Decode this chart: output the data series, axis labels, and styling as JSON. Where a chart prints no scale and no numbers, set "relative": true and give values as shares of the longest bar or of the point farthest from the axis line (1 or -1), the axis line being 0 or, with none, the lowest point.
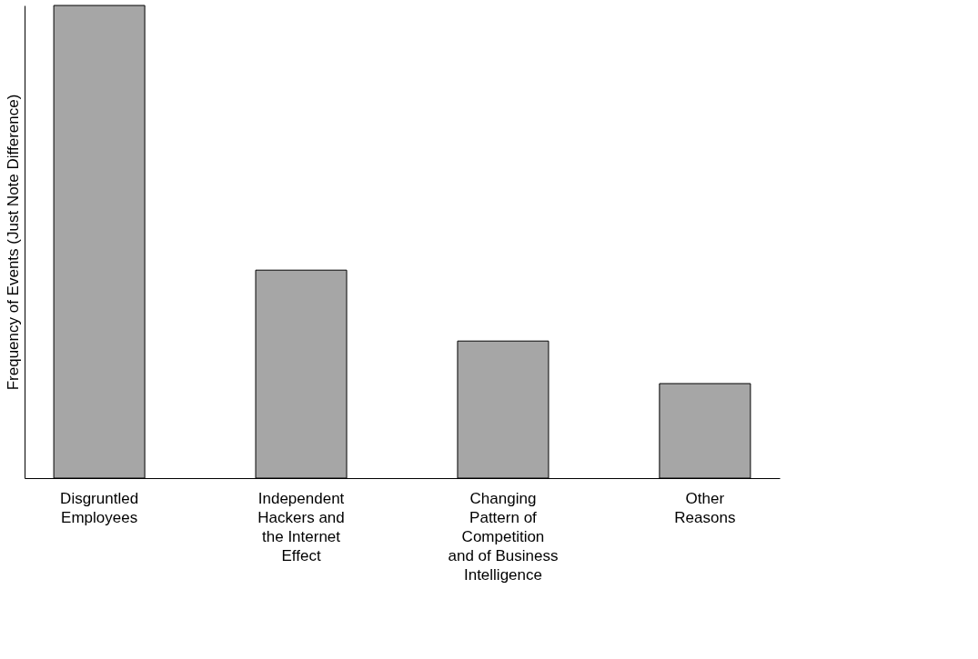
{
  "chart_data": {
    "type": "bar",
    "ylabel": "Frequency of Events (Just Note Difference)",
    "categories": [
      "Disgruntled\nEmployees",
      "Independent\nHackers and\nthe Internet\nEffect",
      "Changing\nPattern of\nCompetition\nand of Business\nIntelligence",
      "Other\nReasons"
    ],
    "values": [
      1,
      0.44,
      0.29,
      0.2
    ],
    "relative": true,
    "color": "#a6a6a6",
    "grid": false
  }
}
